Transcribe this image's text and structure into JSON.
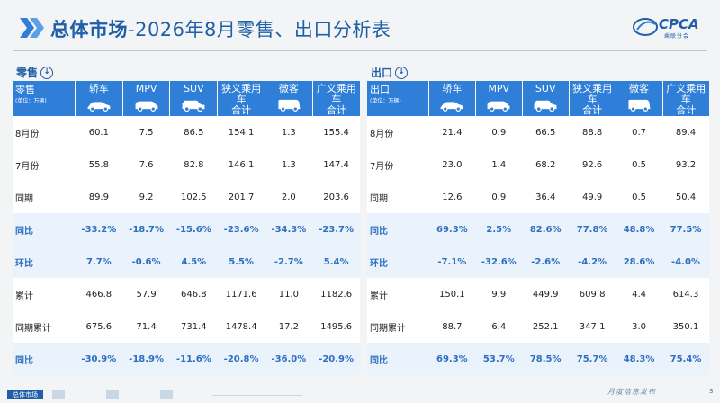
{
  "header": {
    "title_bold": "总体市场",
    "title_rest": "-2026年8月零售、出口分析表",
    "logo_text": "CPCA",
    "logo_sub": "乘联分会"
  },
  "retail": {
    "section_label": "零售",
    "corner_label": "零售",
    "unit": "(单位：万辆)",
    "columns": [
      {
        "line1": "轿车",
        "line2": "",
        "icon": "sedan-icon"
      },
      {
        "line1": "MPV",
        "line2": "",
        "icon": "mpv-icon"
      },
      {
        "line1": "SUV",
        "line2": "",
        "icon": "suv-icon"
      },
      {
        "line1": "狭义乘用车",
        "line2": "合计",
        "icon": ""
      },
      {
        "line1": "微客",
        "line2": "",
        "icon": "minivan-icon"
      },
      {
        "line1": "广义乘用车",
        "line2": "合计",
        "icon": ""
      }
    ],
    "rows": [
      {
        "label": "8月份",
        "values": [
          "60.1",
          "7.5",
          "86.5",
          "154.1",
          "1.3",
          "155.4"
        ],
        "highlight": false
      },
      {
        "label": "7月份",
        "values": [
          "55.8",
          "7.6",
          "82.8",
          "146.1",
          "1.3",
          "147.4"
        ],
        "highlight": false
      },
      {
        "label": "同期",
        "values": [
          "89.9",
          "9.2",
          "102.5",
          "201.7",
          "2.0",
          "203.6"
        ],
        "highlight": false
      },
      {
        "label": "同比",
        "values": [
          "-33.2%",
          "-18.7%",
          "-15.6%",
          "-23.6%",
          "-34.3%",
          "-23.7%"
        ],
        "highlight": true
      },
      {
        "label": "环比",
        "values": [
          "7.7%",
          "-0.6%",
          "4.5%",
          "5.5%",
          "-2.7%",
          "5.4%"
        ],
        "highlight": true
      },
      {
        "label": "累计",
        "values": [
          "466.8",
          "57.9",
          "646.8",
          "1171.6",
          "11.0",
          "1182.6"
        ],
        "highlight": false
      },
      {
        "label": "同期累计",
        "values": [
          "675.6",
          "71.4",
          "731.4",
          "1478.4",
          "17.2",
          "1495.6"
        ],
        "highlight": false
      },
      {
        "label": "同比",
        "values": [
          "-30.9%",
          "-18.9%",
          "-11.6%",
          "-20.8%",
          "-36.0%",
          "-20.9%"
        ],
        "highlight": true
      }
    ]
  },
  "export": {
    "section_label": "出口",
    "corner_label": "出口",
    "unit": "(单位：万辆)",
    "columns": [
      {
        "line1": "轿车",
        "line2": "",
        "icon": "sedan-icon"
      },
      {
        "line1": "MPV",
        "line2": "",
        "icon": "mpv-icon"
      },
      {
        "line1": "SUV",
        "line2": "",
        "icon": "suv-icon"
      },
      {
        "line1": "狭义乘用车",
        "line2": "合计",
        "icon": ""
      },
      {
        "line1": "微客",
        "line2": "",
        "icon": "minivan-icon"
      },
      {
        "line1": "广义乘用车",
        "line2": "合计",
        "icon": ""
      }
    ],
    "rows": [
      {
        "label": "8月份",
        "values": [
          "21.4",
          "0.9",
          "66.5",
          "88.8",
          "0.7",
          "89.4"
        ],
        "highlight": false
      },
      {
        "label": "7月份",
        "values": [
          "23.0",
          "1.4",
          "68.2",
          "92.6",
          "0.5",
          "93.2"
        ],
        "highlight": false
      },
      {
        "label": "同期",
        "values": [
          "12.6",
          "0.9",
          "36.4",
          "49.9",
          "0.5",
          "50.4"
        ],
        "highlight": false
      },
      {
        "label": "同比",
        "values": [
          "69.3%",
          "2.5%",
          "82.6%",
          "77.8%",
          "48.8%",
          "77.5%"
        ],
        "highlight": true
      },
      {
        "label": "环比",
        "values": [
          "-7.1%",
          "-32.6%",
          "-2.6%",
          "-4.2%",
          "28.6%",
          "-4.0%"
        ],
        "highlight": true
      },
      {
        "label": "累计",
        "values": [
          "150.1",
          "9.9",
          "449.9",
          "609.8",
          "4.4",
          "614.3"
        ],
        "highlight": false
      },
      {
        "label": "同期累计",
        "values": [
          "88.7",
          "6.4",
          "252.1",
          "347.1",
          "3.0",
          "350.1"
        ],
        "highlight": false
      },
      {
        "label": "同比",
        "values": [
          "69.3%",
          "53.7%",
          "78.5%",
          "75.7%",
          "48.3%",
          "75.4%"
        ],
        "highlight": true
      }
    ]
  },
  "footer": {
    "active_tab": "总体市场",
    "monthly": "月度信息发布",
    "page": "3"
  },
  "colors": {
    "header_blue": "#2f7ed8",
    "highlight_row": "#eaf2fb",
    "accent_text": "#2d6fc0",
    "title_blue": "#1f5fa8"
  }
}
